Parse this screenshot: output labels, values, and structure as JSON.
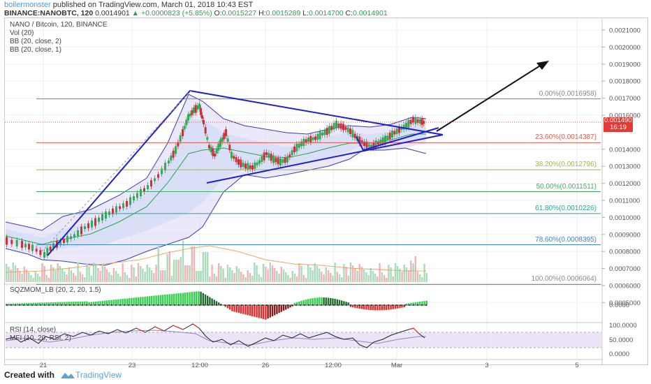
{
  "header": {
    "author": "boilermonster",
    "published": "published on TradingView.com, March 01, 2018 10:43 EST",
    "symbol": "BINANCE:NANOBTC, 120",
    "last": "0.0014901",
    "change": "+0.0000823 (+5.85%)",
    "o": "0.0015227",
    "h": "0.0015289",
    "l": "0.0014700",
    "c": "0.0014901"
  },
  "legend": {
    "title": "NANO / Bitcoin, 120, BINANCE",
    "vol": "Vol (20)",
    "bb1": "BB (20, close, 2)",
    "bb2": "BB (20, close, 1)"
  },
  "price_axis": [
    "0.0021000",
    "0.0020000",
    "0.0019000",
    "0.0018000",
    "0.0017000",
    "0.0016000",
    "0.0014000",
    "0.0013000",
    "0.0012000",
    "0.0011000",
    "0.0010000",
    "0.0009000",
    "0.0008000",
    "0.0007000",
    "0.0006000",
    "0.0005000"
  ],
  "price_tag": {
    "value": "0.0014901",
    "time": "16:19"
  },
  "fib": [
    {
      "label": "0.00%(0.0016958)",
      "color": "#888888"
    },
    {
      "label": "23.60%(0.0014387)",
      "color": "#e05a4e"
    },
    {
      "label": "38.20%(0.0012796)",
      "color": "#9db64a"
    },
    {
      "label": "50.00%(0.0011511)",
      "color": "#3fb063"
    },
    {
      "label": "61.80%(0.0010226)",
      "color": "#2aa29a"
    },
    {
      "label": "78.60%(0.0008395)",
      "color": "#3b86c4"
    },
    {
      "label": "100.00%(0.0006064)",
      "color": "#888888"
    }
  ],
  "sqz": {
    "label": "SQZMOM_LB (20, 2, 20, 1.5)",
    "axis": "0.0000"
  },
  "rsi": {
    "label": "RSI (14, close)",
    "mfi": "MFI (10, 20, RSI, 2)",
    "axis": [
      "100.0000",
      "50.0000",
      "0.0000"
    ]
  },
  "time_axis": [
    "21",
    "23",
    "12:00",
    "26",
    "12:00",
    "Mar",
    "3",
    "5"
  ],
  "footer": {
    "created": "Created with",
    "brand": "TradingView"
  }
}
